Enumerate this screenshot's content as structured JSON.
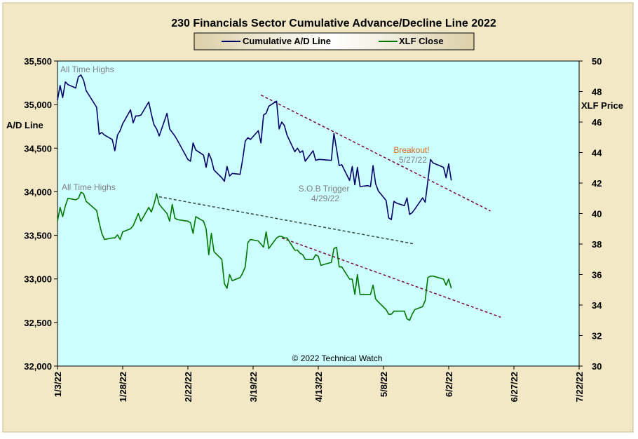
{
  "chart_data": {
    "type": "line",
    "title": "230 Financials  Sector Cumulative  Advance/Decline Line 2022",
    "ylabel_left": "A/D Line",
    "ylabel_right": "XLF Price",
    "ylim_left": [
      32000,
      35500
    ],
    "yticks_left": [
      "32,000",
      "32,500",
      "33,000",
      "33,500",
      "34,000",
      "34,500",
      "35,000",
      "35,500"
    ],
    "ylim_right": [
      30,
      50
    ],
    "yticks_right": [
      "30",
      "32",
      "34",
      "36",
      "38",
      "40",
      "42",
      "44",
      "46",
      "48",
      "50"
    ],
    "xlim": [
      "2022-01-03",
      "2022-07-22"
    ],
    "xticks": [
      "1/3/22",
      "1/28/22",
      "2/22/22",
      "3/19/22",
      "4/13/22",
      "5/8/22",
      "6/2/22",
      "6/27/22",
      "7/22/22"
    ],
    "legend": {
      "placement": "top-center"
    },
    "colors": {
      "ad_line": "#000066",
      "xlf": "#007700",
      "trend": "#7a0a3c",
      "sob": "#2c4a3a",
      "plot_bg": "#ccffff",
      "frame_bg": "#f2e8c6",
      "breakout": "#d2691e",
      "note": "#808080"
    },
    "series": [
      {
        "name": "Cumulative A/D Line",
        "axis": "left",
        "x": [
          "2022-01-03",
          "2022-01-04",
          "2022-01-05",
          "2022-01-06",
          "2022-01-07",
          "2022-01-10",
          "2022-01-11",
          "2022-01-12",
          "2022-01-13",
          "2022-01-14",
          "2022-01-18",
          "2022-01-19",
          "2022-01-20",
          "2022-01-21",
          "2022-01-24",
          "2022-01-25",
          "2022-01-26",
          "2022-01-27",
          "2022-01-28",
          "2022-01-31",
          "2022-02-01",
          "2022-02-02",
          "2022-02-03",
          "2022-02-04",
          "2022-02-07",
          "2022-02-08",
          "2022-02-09",
          "2022-02-10",
          "2022-02-11",
          "2022-02-14",
          "2022-02-15",
          "2022-02-16",
          "2022-02-17",
          "2022-02-18",
          "2022-02-22",
          "2022-02-23",
          "2022-02-24",
          "2022-02-25",
          "2022-02-28",
          "2022-03-01",
          "2022-03-02",
          "2022-03-03",
          "2022-03-04",
          "2022-03-07",
          "2022-03-08",
          "2022-03-09",
          "2022-03-10",
          "2022-03-11",
          "2022-03-14",
          "2022-03-15",
          "2022-03-16",
          "2022-03-17",
          "2022-03-18",
          "2022-03-21",
          "2022-03-22",
          "2022-03-23",
          "2022-03-24",
          "2022-03-25",
          "2022-03-28",
          "2022-03-29",
          "2022-03-30",
          "2022-03-31",
          "2022-04-01",
          "2022-04-04",
          "2022-04-05",
          "2022-04-06",
          "2022-04-07",
          "2022-04-08",
          "2022-04-11",
          "2022-04-12",
          "2022-04-13",
          "2022-04-14",
          "2022-04-18",
          "2022-04-19",
          "2022-04-20",
          "2022-04-21",
          "2022-04-22",
          "2022-04-25",
          "2022-04-26",
          "2022-04-27",
          "2022-04-28",
          "2022-04-29",
          "2022-05-02",
          "2022-05-03",
          "2022-05-04",
          "2022-05-05",
          "2022-05-06",
          "2022-05-09",
          "2022-05-10",
          "2022-05-11",
          "2022-05-12",
          "2022-05-13",
          "2022-05-16",
          "2022-05-17",
          "2022-05-18",
          "2022-05-19",
          "2022-05-20",
          "2022-05-23",
          "2022-05-24",
          "2022-05-25",
          "2022-05-26",
          "2022-05-27",
          "2022-05-31",
          "2022-06-01",
          "2022-06-02",
          "2022-06-03"
        ],
        "values": [
          35050,
          35220,
          35080,
          35260,
          35230,
          35190,
          35320,
          35340,
          35280,
          35160,
          34970,
          34660,
          34680,
          34650,
          34600,
          34470,
          34650,
          34700,
          34780,
          34940,
          34790,
          34870,
          34870,
          34880,
          35030,
          34890,
          34770,
          34720,
          34640,
          34900,
          34720,
          34680,
          34640,
          34590,
          34370,
          34350,
          34560,
          34480,
          34420,
          34280,
          34440,
          34370,
          34250,
          34160,
          34120,
          34290,
          34180,
          34210,
          34200,
          34370,
          34580,
          34620,
          34600,
          34700,
          34560,
          34880,
          34900,
          34980,
          35040,
          34720,
          34800,
          34760,
          34650,
          34460,
          34500,
          34450,
          34470,
          34350,
          34470,
          34360,
          34370,
          34370,
          34360,
          34670,
          34490,
          34300,
          34310,
          34130,
          34290,
          34080,
          34280,
          34060,
          34070,
          34060,
          34300,
          34090,
          34010,
          33900,
          33700,
          33680,
          33890,
          33870,
          33840,
          33930,
          33740,
          33760,
          33800,
          33930,
          33880,
          34120,
          34370,
          34330,
          34280,
          34160,
          34320,
          34130
        ]
      },
      {
        "name": "XLF Close",
        "axis": "right",
        "x": [
          "2022-01-03",
          "2022-01-04",
          "2022-01-05",
          "2022-01-06",
          "2022-01-07",
          "2022-01-10",
          "2022-01-11",
          "2022-01-12",
          "2022-01-13",
          "2022-01-14",
          "2022-01-18",
          "2022-01-19",
          "2022-01-20",
          "2022-01-21",
          "2022-01-24",
          "2022-01-25",
          "2022-01-26",
          "2022-01-27",
          "2022-01-28",
          "2022-01-31",
          "2022-02-01",
          "2022-02-02",
          "2022-02-03",
          "2022-02-04",
          "2022-02-07",
          "2022-02-08",
          "2022-02-09",
          "2022-02-10",
          "2022-02-11",
          "2022-02-14",
          "2022-02-15",
          "2022-02-16",
          "2022-02-17",
          "2022-02-18",
          "2022-02-22",
          "2022-02-23",
          "2022-02-24",
          "2022-02-25",
          "2022-02-28",
          "2022-03-01",
          "2022-03-02",
          "2022-03-03",
          "2022-03-04",
          "2022-03-07",
          "2022-03-08",
          "2022-03-09",
          "2022-03-10",
          "2022-03-11",
          "2022-03-14",
          "2022-03-15",
          "2022-03-16",
          "2022-03-17",
          "2022-03-18",
          "2022-03-21",
          "2022-03-22",
          "2022-03-23",
          "2022-03-24",
          "2022-03-25",
          "2022-03-28",
          "2022-03-29",
          "2022-03-30",
          "2022-03-31",
          "2022-04-01",
          "2022-04-04",
          "2022-04-05",
          "2022-04-06",
          "2022-04-07",
          "2022-04-08",
          "2022-04-11",
          "2022-04-12",
          "2022-04-13",
          "2022-04-14",
          "2022-04-18",
          "2022-04-19",
          "2022-04-20",
          "2022-04-21",
          "2022-04-22",
          "2022-04-25",
          "2022-04-26",
          "2022-04-27",
          "2022-04-28",
          "2022-04-29",
          "2022-05-02",
          "2022-05-03",
          "2022-05-04",
          "2022-05-05",
          "2022-05-06",
          "2022-05-09",
          "2022-05-10",
          "2022-05-11",
          "2022-05-12",
          "2022-05-13",
          "2022-05-16",
          "2022-05-17",
          "2022-05-18",
          "2022-05-19",
          "2022-05-20",
          "2022-05-23",
          "2022-05-24",
          "2022-05-25",
          "2022-05-26",
          "2022-05-27",
          "2022-05-31",
          "2022-06-01",
          "2022-06-02",
          "2022-06-03"
        ],
        "values": [
          39.5,
          40.4,
          39.8,
          40.5,
          41.0,
          40.9,
          41.0,
          41.4,
          41.3,
          40.8,
          40.2,
          39.4,
          38.7,
          38.3,
          38.4,
          38.4,
          38.6,
          38.3,
          38.8,
          39.0,
          39.2,
          39.6,
          40.0,
          39.5,
          40.4,
          40.1,
          40.6,
          41.3,
          40.6,
          40.0,
          39.5,
          40.6,
          39.7,
          39.6,
          39.5,
          39.4,
          38.7,
          39.8,
          39.5,
          39.0,
          37.3,
          38.7,
          37.5,
          37.0,
          35.4,
          35.1,
          36.0,
          35.6,
          35.8,
          36.1,
          36.5,
          38.1,
          38.3,
          38.2,
          38.0,
          37.8,
          38.8,
          37.7,
          38.4,
          38.5,
          38.5,
          38.4,
          38.4,
          37.6,
          37.6,
          37.4,
          37.3,
          37.0,
          37.0,
          37.3,
          37.2,
          36.6,
          36.8,
          37.7,
          37.8,
          36.5,
          36.5,
          35.7,
          35.7,
          34.7,
          36.0,
          34.7,
          34.7,
          34.7,
          35.3,
          34.4,
          34.2,
          33.7,
          33.4,
          33.4,
          33.6,
          33.6,
          33.6,
          33.1,
          33.0,
          33.4,
          33.7,
          33.9,
          34.3,
          35.8,
          35.9,
          35.9,
          35.7,
          35.3,
          35.7,
          35.1
        ]
      }
    ],
    "trendlines": [
      {
        "kind": "resistance",
        "axis": "left",
        "points": [
          [
            "2022-03-22",
            35110
          ],
          [
            "2022-06-18",
            33780
          ]
        ]
      },
      {
        "kind": "sob",
        "axis": "right",
        "points": [
          [
            "2022-02-11",
            41.1
          ],
          [
            "2022-05-20",
            38.0
          ]
        ]
      },
      {
        "kind": "support",
        "axis": "right",
        "points": [
          [
            "2022-03-30",
            38.4
          ],
          [
            "2022-06-22",
            33.2
          ]
        ]
      }
    ],
    "annotations": {
      "ad_high": {
        "text": "All Time Highs"
      },
      "xlf_high": {
        "text": "All Time Highs"
      },
      "breakout": {
        "label": "Breakout!",
        "date": "5/27/22"
      },
      "sob": {
        "label": "S.O.B  Trigger",
        "date": "4/29/22"
      },
      "copyright": "© 2022 Technical Watch"
    }
  }
}
